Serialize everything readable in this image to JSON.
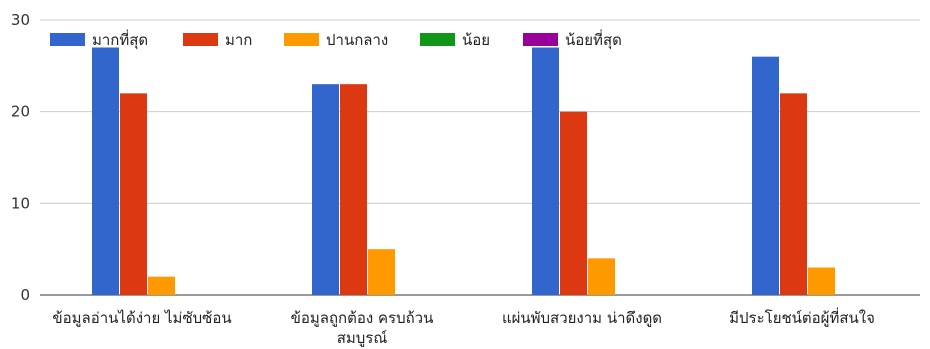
{
  "chart_data": {
    "type": "bar",
    "categories": [
      [
        "ข้อมูลอ่านได้ง่าย ไม่ซับซ้อน"
      ],
      [
        "ข้อมูลถูกต้อง ครบถ้วน",
        "สมบูรณ์"
      ],
      [
        "แผ่นพับสวยงาม น่าดึงดูด"
      ],
      [
        "มีประโยชน์ต่อผู้ที่สนใจ"
      ]
    ],
    "series": [
      {
        "name": "มากที่สุด",
        "color": "#3366cc",
        "values": [
          27,
          23,
          27,
          26
        ]
      },
      {
        "name": "มาก",
        "color": "#dc3912",
        "values": [
          22,
          23,
          20,
          22
        ]
      },
      {
        "name": "ปานกลาง",
        "color": "#ff9900",
        "values": [
          2,
          5,
          4,
          3
        ]
      },
      {
        "name": "น้อย",
        "color": "#109618",
        "values": [
          0,
          0,
          0,
          0
        ]
      },
      {
        "name": "น้อยที่สุด",
        "color": "#990099",
        "values": [
          0,
          0,
          0,
          0
        ]
      }
    ],
    "y_ticks": [
      0,
      10,
      20,
      30
    ],
    "ylim": [
      0,
      30
    ],
    "grid": true,
    "legend_position": "top"
  }
}
